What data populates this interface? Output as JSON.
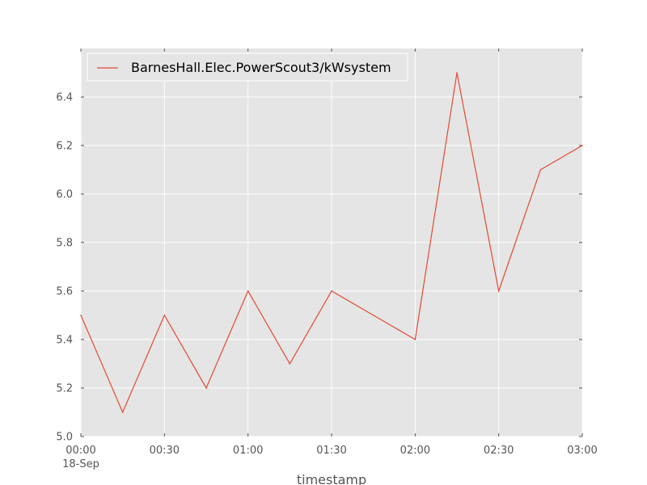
{
  "chart_data": {
    "type": "line",
    "xlabel": "timestamp",
    "ylabel": "",
    "x": [
      "00:00",
      "00:15",
      "00:30",
      "00:45",
      "01:00",
      "01:15",
      "01:30",
      "01:45",
      "02:00",
      "02:15",
      "02:30",
      "02:45",
      "03:00"
    ],
    "series": [
      {
        "name": "BarnesHall.Elec.PowerScout3/kWsystem",
        "color": "#e24a33",
        "values": [
          5.5,
          5.1,
          5.5,
          5.2,
          5.6,
          5.3,
          5.6,
          5.5,
          5.4,
          6.5,
          5.6,
          6.1,
          6.2
        ]
      }
    ],
    "x_ticks": [
      "00:00",
      "00:30",
      "01:00",
      "01:30",
      "02:00",
      "02:30",
      "03:00"
    ],
    "x_date_label": "18-Sep",
    "y_ticks": [
      "5.0",
      "5.2",
      "5.4",
      "5.6",
      "5.8",
      "6.0",
      "6.2",
      "6.4"
    ],
    "ylim": [
      5.0,
      6.6
    ],
    "xlim": [
      "00:00",
      "03:00"
    ],
    "grid": true,
    "legend_position": "top-left",
    "background_color": "#e5e5e5",
    "grid_color": "#ffffff"
  }
}
